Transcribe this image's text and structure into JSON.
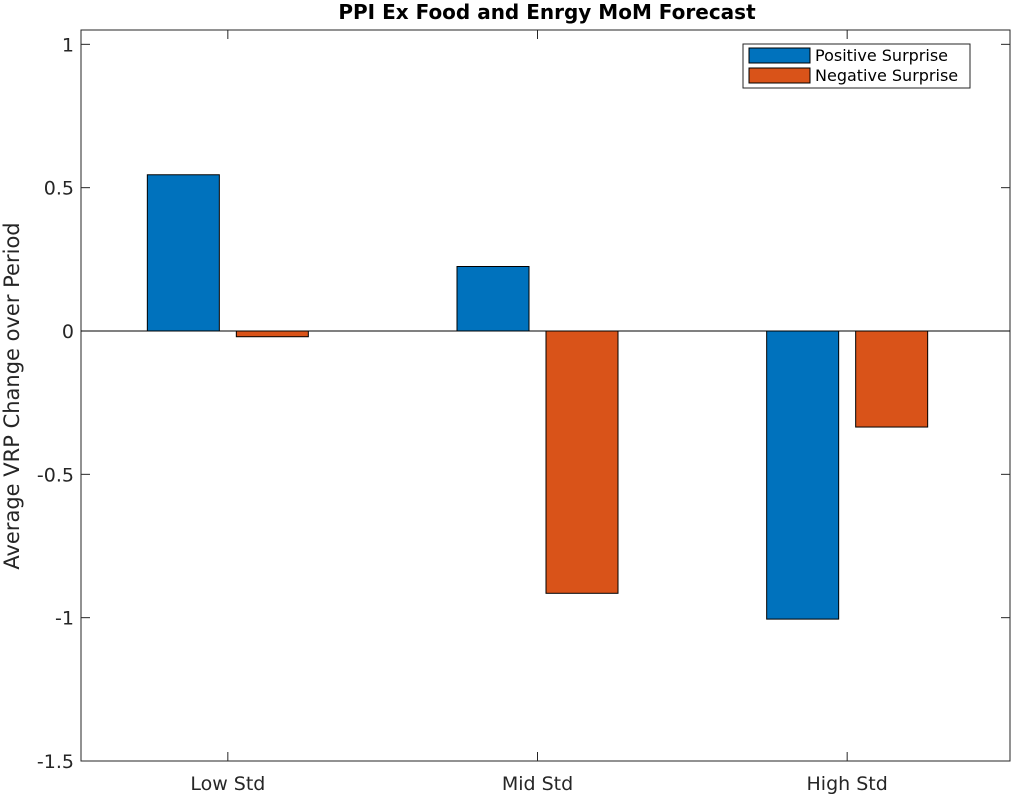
{
  "chart_data": {
    "type": "bar",
    "title": "PPI Ex Food and Enrgy MoM Forecast",
    "xlabel": "",
    "ylabel": "Average VRP Change over Period",
    "categories": [
      "Low Std",
      "Mid Std",
      "High Std"
    ],
    "series": [
      {
        "name": "Positive Surprise",
        "color": "#0072BD",
        "values": [
          0.545,
          0.225,
          -1.005
        ]
      },
      {
        "name": "Negative Surprise",
        "color": "#D95319",
        "values": [
          -0.02,
          -0.915,
          -0.335
        ]
      }
    ],
    "ylim": [
      -1.5,
      1.05
    ],
    "yticks": [
      -1.5,
      -1,
      -0.5,
      0,
      0.5,
      1
    ],
    "ytick_labels": [
      "-1.5",
      "-1",
      "-0.5",
      "0",
      "0.5",
      "1"
    ],
    "grid": false,
    "legend_position": "top-right",
    "zero_line": true
  }
}
